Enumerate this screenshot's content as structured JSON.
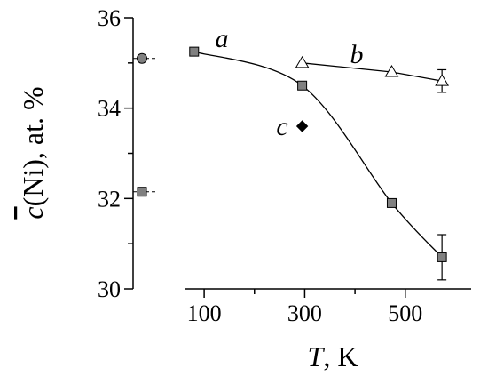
{
  "chart_data": {
    "type": "scatter",
    "xlabel": {
      "var": "T",
      "rest": ", K"
    },
    "ylabel": {
      "var": "c",
      "rest": "(Ni), at. %"
    },
    "xlim": [
      61,
      631
    ],
    "xticks": [
      100,
      300,
      500
    ],
    "xminor_ticks": [
      200,
      400
    ],
    "ylim": [
      30,
      36
    ],
    "yticks": [
      30,
      32,
      34,
      36
    ],
    "yminor_ticks": [
      31,
      33,
      35
    ],
    "series": [
      {
        "name": "a",
        "marker": "square",
        "color": "#808080",
        "line": "smooth",
        "x": [
          80,
          295,
          473,
          573
        ],
        "values": [
          35.25,
          34.5,
          31.9,
          30.7
        ],
        "errors": [
          null,
          null,
          null,
          0.5
        ]
      },
      {
        "name": "b",
        "marker": "triangle",
        "color": "#ffffff",
        "line": "straight",
        "x": [
          295,
          473,
          573
        ],
        "values": [
          35.0,
          34.8,
          34.6
        ],
        "errors": [
          null,
          null,
          0.25
        ]
      },
      {
        "name": "c",
        "marker": "diamond",
        "color": "#000000",
        "x": [
          295
        ],
        "values": [
          33.6
        ]
      }
    ],
    "reference_points": [
      {
        "marker": "circle",
        "color": "#808080",
        "value": 35.1
      },
      {
        "marker": "square",
        "color": "#808080",
        "value": 32.15
      }
    ]
  }
}
